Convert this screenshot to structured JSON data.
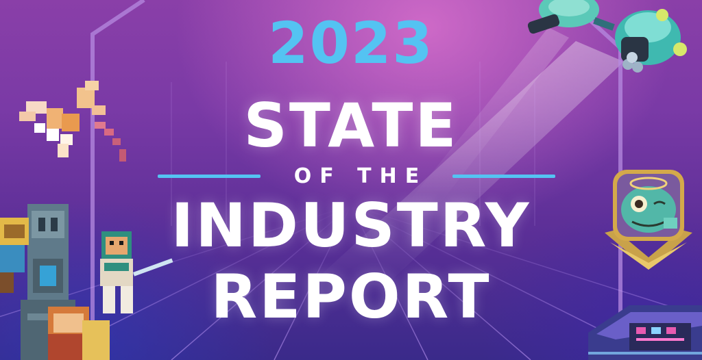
{
  "banner": {
    "year": "2023",
    "title_line1": "STATE",
    "title_line2": "OF THE",
    "title_line3": "INDUSTRY",
    "title_line4": "REPORT"
  },
  "colors": {
    "year_accent": "#54c3f2",
    "title_text": "#ffffff",
    "background_top": "#8a3fa8",
    "background_bottom": "#3a2a8a"
  },
  "decorations": {
    "top_left": "voxel-dragon-icon",
    "left_bottom": "voxel-temple-warriors-icon",
    "top_right": "robot-drone-icon",
    "right_middle": "chameleon-badge-icon",
    "bottom_right": "arena-building-icon"
  }
}
